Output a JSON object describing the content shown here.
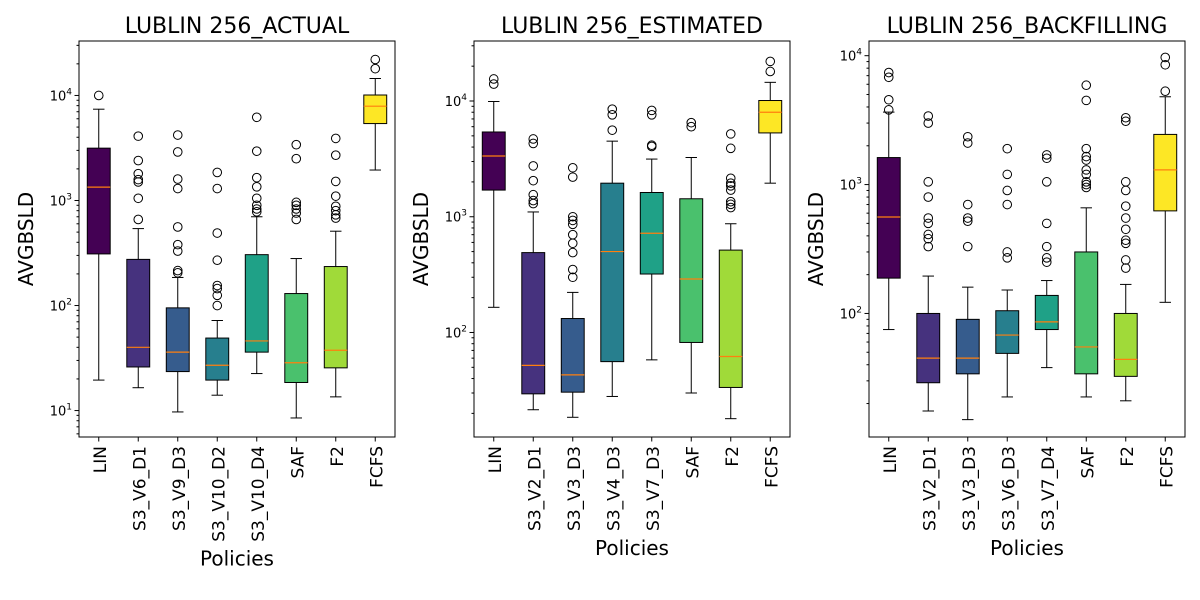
{
  "chart_data": [
    {
      "type": "box",
      "title": "LUBLIN 256_ACTUAL",
      "xlabel": "Policies",
      "ylabel": "AVGBSLD",
      "yscale": "log",
      "ylim": [
        5.6,
        33000
      ],
      "yticks": [
        {
          "value": 10,
          "base": "10",
          "exp": "1"
        },
        {
          "value": 100,
          "base": "10",
          "exp": "2"
        },
        {
          "value": 1000,
          "base": "10",
          "exp": "3"
        },
        {
          "value": 10000,
          "base": "10",
          "exp": "4"
        }
      ],
      "categories": [
        "LIN",
        "S3_V6_D1",
        "S3_V9_D3",
        "S3_V10_D2",
        "S3_V10_D4",
        "SAF",
        "F2",
        "FCFS"
      ],
      "colors": [
        "#440154",
        "#46327e",
        "#365c8d",
        "#277f8e",
        "#1fa187",
        "#4ac16d",
        "#a0da39",
        "#fde725"
      ],
      "boxes": [
        {
          "whislo": 19.5,
          "q1": 310,
          "med": 1340,
          "q3": 3150,
          "whishi": 7400,
          "fliers": [
            10000
          ]
        },
        {
          "whislo": 16.5,
          "q1": 26,
          "med": 40,
          "q3": 275,
          "whishi": 540,
          "fliers": [
            660,
            1050,
            1500,
            1580,
            1800,
            2400,
            4100
          ]
        },
        {
          "whislo": 9.7,
          "q1": 23.5,
          "med": 36,
          "q3": 95,
          "whishi": 185,
          "fliers": [
            205,
            215,
            330,
            380,
            560,
            1300,
            1600,
            2900,
            4200
          ]
        },
        {
          "whislo": 14,
          "q1": 19.5,
          "med": 27,
          "q3": 49,
          "whishi": 72,
          "fliers": [
            100,
            125,
            145,
            155,
            270,
            490,
            1300,
            1850
          ]
        },
        {
          "whislo": 22.5,
          "q1": 36,
          "med": 46,
          "q3": 305,
          "whishi": 700,
          "fliers": [
            780,
            830,
            900,
            1050,
            1350,
            1650,
            2950,
            6200
          ]
        },
        {
          "whislo": 8.5,
          "q1": 18.5,
          "med": 28.5,
          "q3": 130,
          "whishi": 280,
          "fliers": [
            660,
            760,
            830,
            900,
            960,
            2500,
            3400
          ]
        },
        {
          "whislo": 13.5,
          "q1": 25.5,
          "med": 37.5,
          "q3": 235,
          "whishi": 510,
          "fliers": [
            680,
            730,
            800,
            880,
            1100,
            1520,
            2700,
            3900
          ]
        },
        {
          "whislo": 1950,
          "q1": 5400,
          "med": 7900,
          "q3": 10100,
          "whishi": 14500,
          "fliers": [
            18000,
            22000
          ]
        }
      ]
    },
    {
      "type": "box",
      "title": "LUBLIN 256_ESTIMATED",
      "xlabel": "Policies",
      "ylabel": "AVGBSLD",
      "yscale": "log",
      "ylim": [
        12.5,
        33000
      ],
      "yticks": [
        {
          "value": 100,
          "base": "10",
          "exp": "2"
        },
        {
          "value": 1000,
          "base": "10",
          "exp": "3"
        },
        {
          "value": 10000,
          "base": "10",
          "exp": "4"
        }
      ],
      "categories": [
        "LIN",
        "S3_V2_D1",
        "S3_V3_D3",
        "S3_V4_D3",
        "S3_V7_D3",
        "SAF",
        "F2",
        "FCFS"
      ],
      "colors": [
        "#440154",
        "#46327e",
        "#365c8d",
        "#277f8e",
        "#1fa187",
        "#4ac16d",
        "#a0da39",
        "#fde725"
      ],
      "boxes": [
        {
          "whislo": 165,
          "q1": 1700,
          "med": 3350,
          "q3": 5400,
          "whishi": 9900,
          "fliers": [
            14000,
            15500
          ]
        },
        {
          "whislo": 21.5,
          "q1": 29.5,
          "med": 52,
          "q3": 490,
          "whishi": 1100,
          "fliers": [
            1300,
            1380,
            1550,
            2050,
            2750,
            4300,
            4700
          ]
        },
        {
          "whislo": 18.5,
          "q1": 30.5,
          "med": 43,
          "q3": 132,
          "whishi": 222,
          "fliers": [
            300,
            350,
            490,
            590,
            700,
            860,
            930,
            1000,
            2200,
            2650
          ]
        },
        {
          "whislo": 28,
          "q1": 56,
          "med": 500,
          "q3": 1950,
          "whishi": 4500,
          "fliers": [
            5600,
            7600,
            8500
          ]
        },
        {
          "whislo": 58,
          "q1": 320,
          "med": 720,
          "q3": 1620,
          "whishi": 3150,
          "fliers": [
            4050,
            4150,
            7600,
            8300
          ]
        },
        {
          "whislo": 30,
          "q1": 82,
          "med": 290,
          "q3": 1430,
          "whishi": 3250,
          "fliers": [
            6000,
            6500
          ]
        },
        {
          "whislo": 18,
          "q1": 33.5,
          "med": 62,
          "q3": 515,
          "whishi": 870,
          "fliers": [
            1200,
            1280,
            1350,
            1700,
            1850,
            1950,
            2150,
            3900,
            5200
          ]
        },
        {
          "whislo": 1950,
          "q1": 5300,
          "med": 8000,
          "q3": 10100,
          "whishi": 14500,
          "fliers": [
            18000,
            22000
          ]
        }
      ]
    },
    {
      "type": "box",
      "title": "LUBLIN 256_BACKFILLING",
      "xlabel": "Policies",
      "ylabel": "AVGBSLD",
      "yscale": "log",
      "ylim": [
        11,
        13000
      ],
      "yticks": [
        {
          "value": 100,
          "base": "10",
          "exp": "2"
        },
        {
          "value": 1000,
          "base": "10",
          "exp": "3"
        },
        {
          "value": 10000,
          "base": "10",
          "exp": "4"
        }
      ],
      "categories": [
        "LIN",
        "S3_V2_D1",
        "S3_V3_D3",
        "S3_V6_D3",
        "S3_V7_D4",
        "SAF",
        "F2",
        "FCFS"
      ],
      "colors": [
        "#440154",
        "#46327e",
        "#365c8d",
        "#277f8e",
        "#1fa187",
        "#4ac16d",
        "#a0da39",
        "#fde725"
      ],
      "boxes": [
        {
          "whislo": 75,
          "q1": 188,
          "med": 560,
          "q3": 1620,
          "whishi": 3650,
          "fliers": [
            3800,
            4550,
            6800,
            7400
          ]
        },
        {
          "whislo": 17.5,
          "q1": 29,
          "med": 45,
          "q3": 100,
          "whishi": 195,
          "fliers": [
            330,
            380,
            410,
            500,
            550,
            800,
            1050,
            3000,
            3400
          ]
        },
        {
          "whislo": 15,
          "q1": 34,
          "med": 45,
          "q3": 90,
          "whishi": 160,
          "fliers": [
            330,
            520,
            550,
            700,
            2100,
            2350
          ]
        },
        {
          "whislo": 22.5,
          "q1": 49,
          "med": 68,
          "q3": 105,
          "whishi": 152,
          "fliers": [
            270,
            300,
            700,
            900,
            1200,
            1900
          ]
        },
        {
          "whislo": 38,
          "q1": 75,
          "med": 86,
          "q3": 138,
          "whishi": 180,
          "fliers": [
            250,
            270,
            330,
            500,
            1050,
            1600,
            1700
          ]
        },
        {
          "whislo": 22.5,
          "q1": 34,
          "med": 55,
          "q3": 300,
          "whishi": 660,
          "fliers": [
            950,
            1000,
            1050,
            1200,
            1300,
            1550,
            1650,
            1900,
            4500,
            5900
          ]
        },
        {
          "whislo": 21,
          "q1": 32.5,
          "med": 44,
          "q3": 100,
          "whishi": 168,
          "fliers": [
            225,
            260,
            350,
            370,
            450,
            550,
            680,
            900,
            1050,
            3100,
            3300
          ]
        },
        {
          "whislo": 122,
          "q1": 625,
          "med": 1300,
          "q3": 2450,
          "whishi": 4800,
          "fliers": [
            5300,
            8500,
            9700
          ]
        }
      ]
    }
  ]
}
